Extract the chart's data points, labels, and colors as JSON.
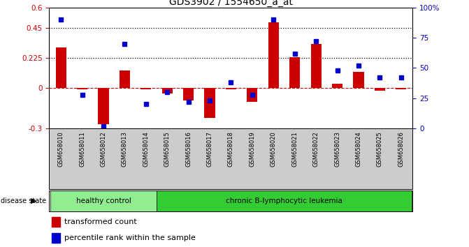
{
  "title": "GDS3902 / 1554650_a_at",
  "samples": [
    "GSM658010",
    "GSM658011",
    "GSM658012",
    "GSM658013",
    "GSM658014",
    "GSM658015",
    "GSM658016",
    "GSM658017",
    "GSM658018",
    "GSM658019",
    "GSM658020",
    "GSM658021",
    "GSM658022",
    "GSM658023",
    "GSM658024",
    "GSM658025",
    "GSM658026"
  ],
  "red_bars": [
    0.3,
    -0.01,
    -0.27,
    0.13,
    -0.01,
    -0.04,
    -0.09,
    -0.22,
    -0.01,
    -0.1,
    0.49,
    0.23,
    0.33,
    0.03,
    0.12,
    -0.02,
    -0.01
  ],
  "blue_dots_pct": [
    90,
    28,
    2,
    70,
    20,
    30,
    22,
    23,
    38,
    28,
    90,
    62,
    72,
    48,
    52,
    42,
    42
  ],
  "group1_label": "healthy control",
  "group1_count": 5,
  "group2_label": "chronic B-lymphocytic leukemia",
  "group2_count": 12,
  "disease_state_label": "disease state",
  "legend_red": "transformed count",
  "legend_blue": "percentile rank within the sample",
  "ylim_left": [
    -0.3,
    0.6
  ],
  "ylim_right": [
    0,
    100
  ],
  "yticks_left": [
    -0.3,
    0,
    0.225,
    0.45,
    0.6
  ],
  "yticks_right": [
    0,
    25,
    50,
    75,
    100
  ],
  "hline_dotted": [
    0.225,
    0.45
  ],
  "bar_color": "#cc0000",
  "dot_color": "#0000cc",
  "plot_bg": "#ffffff",
  "group1_color": "#90ee90",
  "group2_color": "#33cc33",
  "tick_label_area_color": "#cccccc"
}
